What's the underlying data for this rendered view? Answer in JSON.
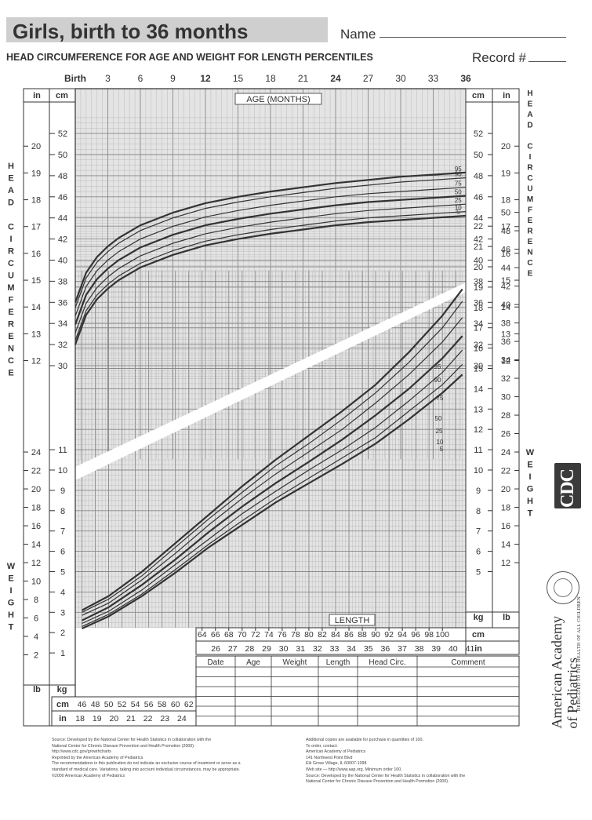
{
  "header": {
    "title": "Girls, birth to 36 months",
    "name_label": "Name",
    "subtitle": "HEAD CIRCUMFERENCE FOR AGE AND WEIGHT FOR LENGTH PERCENTILES",
    "record_label": "Record #"
  },
  "chart_data": [
    {
      "type": "line",
      "title": "Head circumference-for-age percentiles",
      "xlabel": "AGE (MONTHS)",
      "ylabel": "HEAD CIRCUMFERENCE",
      "x_ticks": [
        "Birth",
        "3",
        "6",
        "9",
        "12",
        "15",
        "18",
        "21",
        "24",
        "27",
        "30",
        "33",
        "36"
      ],
      "xlim": [
        0,
        36
      ],
      "ylim_cm": [
        28,
        54
      ],
      "y_ticks_cm": [
        "52",
        "50",
        "48",
        "46",
        "44",
        "42",
        "40",
        "38",
        "36",
        "34",
        "32",
        "30"
      ],
      "y_ticks_in": [
        "20",
        "19",
        "18",
        "17",
        "16",
        "15",
        "14",
        "13",
        "12"
      ],
      "x": [
        0,
        1,
        2,
        3,
        4,
        6,
        9,
        12,
        15,
        18,
        21,
        24,
        27,
        30,
        33,
        36
      ],
      "series": [
        {
          "name": "95",
          "values": [
            36.0,
            38.8,
            40.3,
            41.3,
            42.1,
            43.3,
            44.5,
            45.4,
            46.0,
            46.5,
            46.9,
            47.3,
            47.6,
            47.9,
            48.1,
            48.3
          ]
        },
        {
          "name": "90",
          "values": [
            35.5,
            38.3,
            39.8,
            40.8,
            41.6,
            42.8,
            44.0,
            44.9,
            45.5,
            46.0,
            46.4,
            46.8,
            47.1,
            47.4,
            47.6,
            47.8
          ]
        },
        {
          "name": "75",
          "values": [
            34.7,
            37.5,
            39.0,
            40.0,
            40.8,
            42.0,
            43.2,
            44.1,
            44.7,
            45.2,
            45.6,
            46.0,
            46.3,
            46.5,
            46.7,
            46.9
          ]
        },
        {
          "name": "50",
          "values": [
            33.9,
            36.7,
            38.2,
            39.2,
            40.0,
            41.2,
            42.4,
            43.3,
            43.9,
            44.4,
            44.8,
            45.2,
            45.5,
            45.7,
            45.9,
            46.1
          ]
        },
        {
          "name": "25",
          "values": [
            33.1,
            35.9,
            37.4,
            38.4,
            39.2,
            40.4,
            41.6,
            42.5,
            43.1,
            43.6,
            44.0,
            44.4,
            44.7,
            44.9,
            45.1,
            45.3
          ]
        },
        {
          "name": "10",
          "values": [
            32.4,
            35.2,
            36.7,
            37.7,
            38.5,
            39.7,
            40.9,
            41.8,
            42.4,
            42.9,
            43.3,
            43.7,
            44.0,
            44.2,
            44.4,
            44.6
          ]
        },
        {
          "name": "5",
          "values": [
            32.0,
            34.8,
            36.3,
            37.3,
            38.1,
            39.3,
            40.5,
            41.4,
            42.0,
            42.5,
            42.9,
            43.3,
            43.6,
            43.8,
            44.0,
            44.2
          ]
        }
      ]
    },
    {
      "type": "line",
      "title": "Weight-for-length percentiles",
      "xlabel": "LENGTH",
      "ylabel": "WEIGHT",
      "x_ticks_cm": [
        "46",
        "48",
        "50",
        "52",
        "54",
        "56",
        "58",
        "60",
        "62",
        "64",
        "66",
        "68",
        "70",
        "72",
        "74",
        "76",
        "78",
        "80",
        "82",
        "84",
        "86",
        "88",
        "90",
        "92",
        "94",
        "96",
        "98",
        "100"
      ],
      "x_ticks_in": [
        "18",
        "19",
        "20",
        "21",
        "22",
        "23",
        "24",
        "25",
        "26",
        "27",
        "28",
        "29",
        "30",
        "31",
        "32",
        "33",
        "34",
        "35",
        "36",
        "37",
        "38",
        "39",
        "40",
        "41"
      ],
      "xlim_cm": [
        45,
        103.5
      ],
      "ylim_kg": [
        0,
        12
      ],
      "y_ticks_kg": [
        "11",
        "10",
        "9",
        "8",
        "7",
        "6",
        "5",
        "4",
        "3",
        "2",
        "1"
      ],
      "y_ticks_lb": [
        "24",
        "22",
        "20",
        "18",
        "16",
        "14",
        "12",
        "10",
        "8",
        "6",
        "4",
        "2"
      ],
      "y_ticks_kg_right": [
        "22",
        "21",
        "20",
        "19",
        "18",
        "17",
        "16",
        "15",
        "14",
        "13",
        "12",
        "11",
        "10",
        "9",
        "8",
        "7",
        "6",
        "5"
      ],
      "y_ticks_lb_right": [
        "50",
        "48",
        "46",
        "44",
        "42",
        "40",
        "38",
        "36",
        "34",
        "32",
        "30",
        "28",
        "26",
        "24",
        "22",
        "20",
        "18",
        "16",
        "14",
        "12"
      ],
      "x": [
        46,
        50,
        55,
        60,
        65,
        70,
        75,
        80,
        85,
        90,
        95,
        100,
        103
      ],
      "series": [
        {
          "name": "95",
          "values": [
            3.1,
            3.8,
            5.0,
            6.4,
            7.8,
            9.2,
            10.5,
            11.7,
            12.9,
            14.2,
            15.8,
            17.6,
            18.9
          ]
        },
        {
          "name": "90",
          "values": [
            3.0,
            3.65,
            4.8,
            6.2,
            7.6,
            8.9,
            10.2,
            11.3,
            12.5,
            13.8,
            15.3,
            17.0,
            18.3
          ]
        },
        {
          "name": "75",
          "values": [
            2.85,
            3.45,
            4.6,
            5.9,
            7.3,
            8.6,
            9.8,
            10.9,
            12.0,
            13.3,
            14.7,
            16.3,
            17.5
          ]
        },
        {
          "name": "50",
          "values": [
            2.6,
            3.25,
            4.35,
            5.6,
            6.95,
            8.2,
            9.35,
            10.4,
            11.5,
            12.7,
            14.0,
            15.5,
            16.6
          ]
        },
        {
          "name": "25",
          "values": [
            2.45,
            3.05,
            4.1,
            5.35,
            6.6,
            7.85,
            8.95,
            10.0,
            11.0,
            12.1,
            13.4,
            14.8,
            15.9
          ]
        },
        {
          "name": "10",
          "values": [
            2.3,
            2.9,
            3.9,
            5.1,
            6.35,
            7.5,
            8.6,
            9.6,
            10.6,
            11.6,
            12.9,
            14.2,
            15.2
          ]
        },
        {
          "name": "5",
          "values": [
            2.2,
            2.8,
            3.8,
            4.95,
            6.2,
            7.3,
            8.4,
            9.35,
            10.3,
            11.3,
            12.5,
            13.8,
            14.7
          ]
        }
      ]
    }
  ],
  "record_table": {
    "headers": [
      "Date",
      "Age",
      "Weight",
      "Length",
      "Head Circ.",
      "Comment"
    ]
  },
  "unit_labels": {
    "in": "in",
    "cm": "cm",
    "kg": "kg",
    "lb": "lb"
  },
  "side_labels": {
    "head": [
      "H",
      "E",
      "A",
      "D",
      "",
      "C",
      "I",
      "R",
      "C",
      "U",
      "M",
      "F",
      "E",
      "R",
      "E",
      "N",
      "C",
      "E"
    ],
    "weight": [
      "W",
      "E",
      "I",
      "G",
      "H",
      "T"
    ]
  },
  "footer": {
    "left": [
      "Source:      Developed by the National Center for Health Statistics in collaboration with the",
      "                  National Center for Chronic Disease Prevention and Health Promotion (2000).",
      "                  http://www.cdc.gov/growthcharts",
      "Reprinted by the American Academy of Pediatrics",
      "The recommendations in this publication do not indicate an exclusive course of treatment or serve as a",
      "standard of medical care. Variations, taking into account individual circumstances, may be appropriate.",
      "©2000 American Academy of Pediatrics"
    ],
    "right": [
      "Additional copies are available for purchase in quantities of 100.",
      "To order, contact:",
      "American Academy of Pediatrics",
      "141 Northwest Point Blvd",
      "Elk Grove Village, IL 60007-1098",
      "Web site — http://www.aap.org. Minimum order 100.",
      "Source:      Developed by the National Center for Health Statistics in collaboration with the",
      "                  National Center for Chronic Disease Prevention and Health Promotion (2000)."
    ]
  },
  "branding": {
    "cdc": "CDC",
    "aap": "American Academy of Pediatrics",
    "aap_line1": "American Academy",
    "aap_line2": "of Pediatrics",
    "aap_tagline": "DEDICATED TO THE HEALTH OF ALL CHILDREN"
  },
  "colors": {
    "grid_shade": "#c8c8c8",
    "curve": "#333333",
    "text": "#333333"
  }
}
